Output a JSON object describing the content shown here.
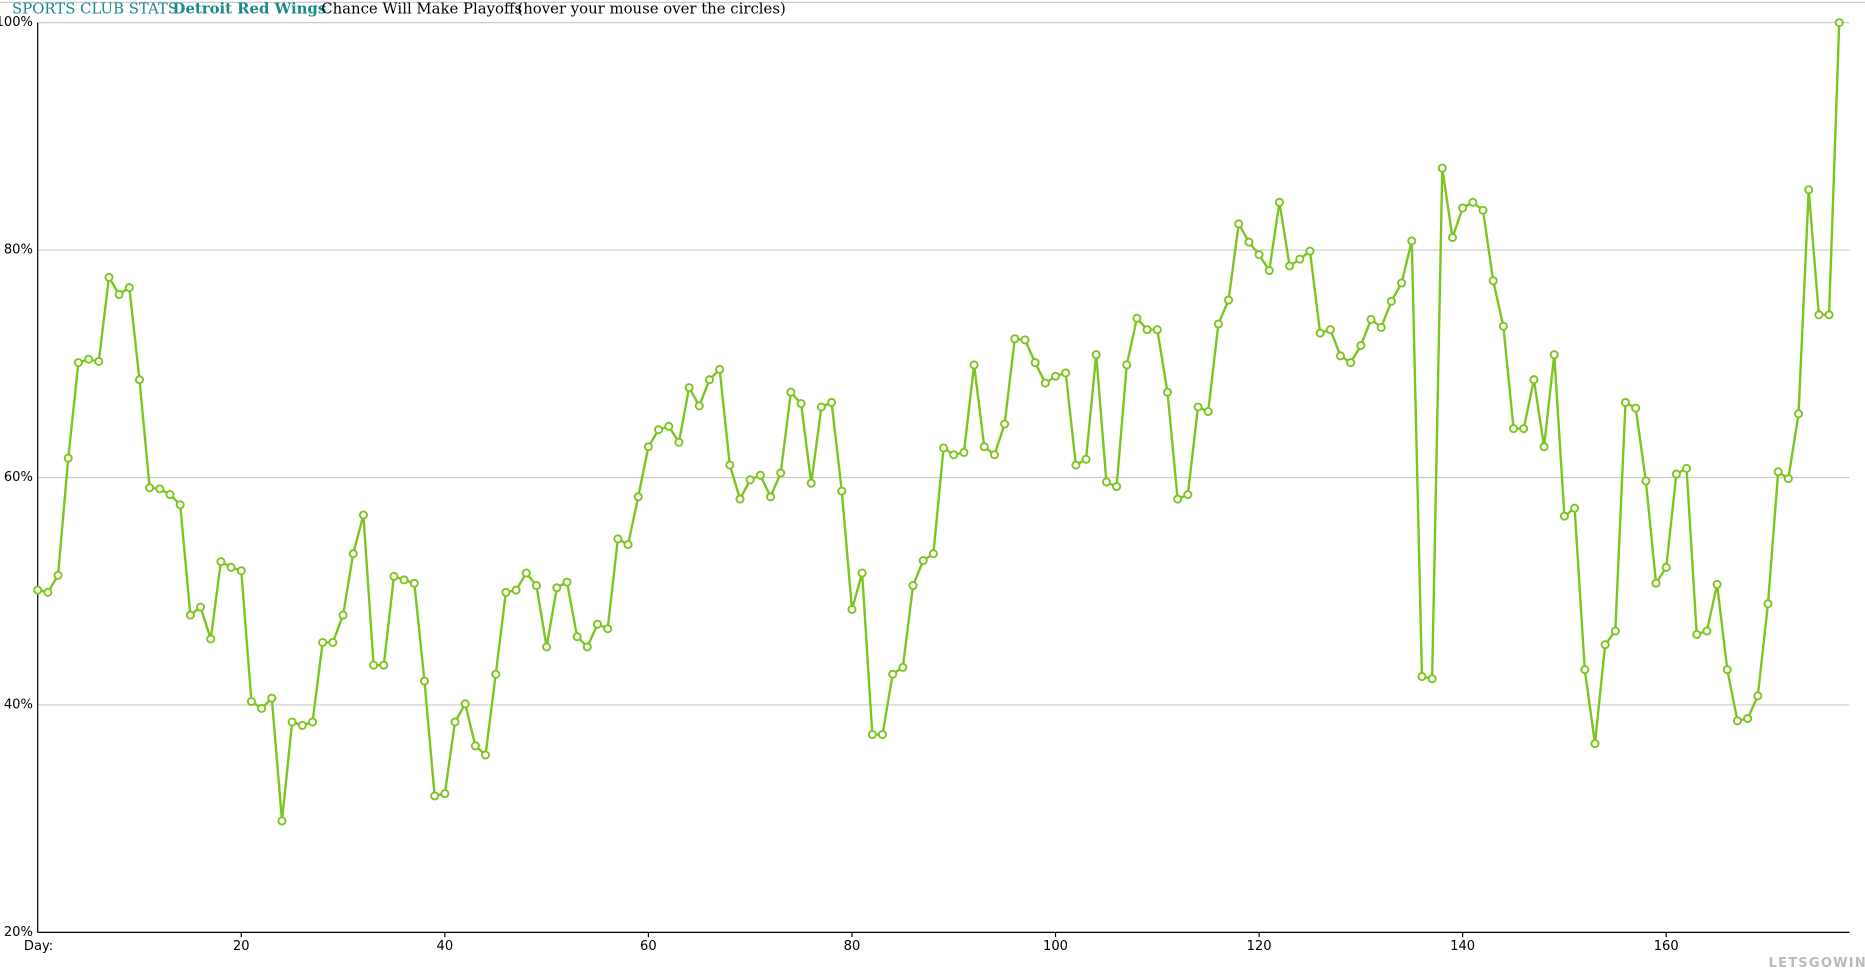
{
  "chart_data": {
    "type": "line",
    "site": "SPORTS CLUB STATS",
    "team": "Detroit Red Wings",
    "title": "Chance Will Make Playoffs",
    "note": "(hover your mouse over the circles)",
    "x_label": "Day:",
    "watermark": "LETSGOWINGS.COM",
    "color": "#7cc520",
    "grid": true,
    "xlim": [
      0,
      178
    ],
    "ylim": [
      20,
      100
    ],
    "xticks": [
      20,
      40,
      60,
      80,
      100,
      120,
      140,
      160
    ],
    "yticks": [
      {
        "value": 20,
        "label": "20%"
      },
      {
        "value": 40,
        "label": "40%"
      },
      {
        "value": 60,
        "label": "60%"
      },
      {
        "value": 80,
        "label": "80%"
      },
      {
        "value": 100,
        "label": "100%"
      }
    ],
    "x": [
      0,
      1,
      2,
      3,
      4,
      5,
      6,
      7,
      8,
      9,
      10,
      11,
      12,
      13,
      14,
      15,
      16,
      17,
      18,
      19,
      20,
      21,
      22,
      23,
      24,
      25,
      26,
      27,
      28,
      29,
      30,
      31,
      32,
      33,
      34,
      35,
      36,
      37,
      38,
      39,
      40,
      41,
      42,
      43,
      44,
      45,
      46,
      47,
      48,
      49,
      50,
      51,
      52,
      53,
      54,
      55,
      56,
      57,
      58,
      59,
      60,
      61,
      62,
      63,
      64,
      65,
      66,
      67,
      68,
      69,
      70,
      71,
      72,
      73,
      74,
      75,
      76,
      77,
      78,
      79,
      80,
      81,
      82,
      83,
      84,
      85,
      86,
      87,
      88,
      89,
      90,
      91,
      92,
      93,
      94,
      95,
      96,
      97,
      98,
      99,
      100,
      101,
      102,
      103,
      104,
      105,
      106,
      107,
      108,
      109,
      110,
      111,
      112,
      113,
      114,
      115,
      116,
      117,
      118,
      119,
      120,
      121,
      122,
      123,
      124,
      125,
      126,
      127,
      128,
      129,
      130,
      131,
      132,
      133,
      134,
      135,
      136,
      137,
      138,
      139,
      140,
      141,
      142,
      143,
      144,
      145,
      146,
      147,
      148,
      149,
      150,
      151,
      152,
      153,
      154,
      155,
      156,
      157,
      158,
      159,
      160,
      161,
      162,
      163,
      164,
      165,
      166,
      167,
      168,
      169,
      170,
      171,
      172,
      173,
      174,
      175,
      176,
      177
    ],
    "values": [
      50.1,
      49.9,
      51.4,
      61.7,
      70.1,
      70.4,
      70.2,
      77.6,
      76.1,
      76.7,
      68.6,
      59.1,
      59.0,
      58.5,
      57.6,
      47.9,
      48.6,
      45.8,
      52.6,
      52.1,
      51.8,
      40.3,
      39.7,
      40.6,
      29.8,
      38.5,
      38.2,
      38.5,
      45.5,
      45.5,
      47.9,
      53.3,
      56.7,
      43.5,
      43.5,
      51.3,
      51.0,
      50.7,
      42.1,
      32.0,
      32.2,
      38.5,
      40.1,
      36.4,
      35.6,
      42.7,
      49.9,
      50.1,
      51.6,
      50.5,
      45.1,
      50.3,
      50.8,
      46.0,
      45.1,
      47.1,
      46.7,
      54.6,
      54.1,
      58.3,
      62.7,
      64.2,
      64.5,
      63.1,
      67.9,
      66.3,
      68.6,
      69.5,
      61.1,
      58.1,
      59.8,
      60.2,
      58.3,
      60.4,
      67.5,
      66.5,
      59.5,
      66.2,
      66.6,
      58.8,
      48.4,
      51.6,
      37.4,
      37.4,
      42.7,
      43.3,
      50.5,
      52.7,
      53.3,
      62.6,
      62.0,
      62.2,
      69.9,
      62.7,
      62.0,
      64.7,
      72.2,
      72.1,
      70.1,
      68.3,
      68.9,
      69.2,
      61.1,
      61.6,
      70.8,
      59.6,
      59.2,
      69.9,
      74.0,
      73.0,
      73.0,
      67.5,
      58.1,
      58.5,
      66.2,
      65.8,
      73.5,
      75.6,
      82.3,
      80.7,
      79.6,
      78.2,
      84.2,
      78.6,
      79.2,
      79.9,
      72.7,
      73.0,
      70.7,
      70.1,
      71.6,
      73.9,
      73.2,
      75.5,
      77.1,
      80.8,
      42.5,
      42.3,
      87.2,
      81.1,
      83.7,
      84.2,
      83.5,
      77.3,
      73.3,
      64.3,
      64.3,
      68.6,
      62.7,
      70.8,
      56.6,
      57.3,
      43.1,
      36.6,
      45.3,
      46.5,
      66.6,
      66.1,
      59.7,
      50.7,
      52.1,
      60.3,
      60.8,
      46.2,
      46.5,
      50.6,
      43.1,
      38.6,
      38.8,
      40.8,
      48.9,
      60.5,
      59.9,
      65.6,
      85.3,
      74.3,
      74.3,
      100
    ]
  }
}
